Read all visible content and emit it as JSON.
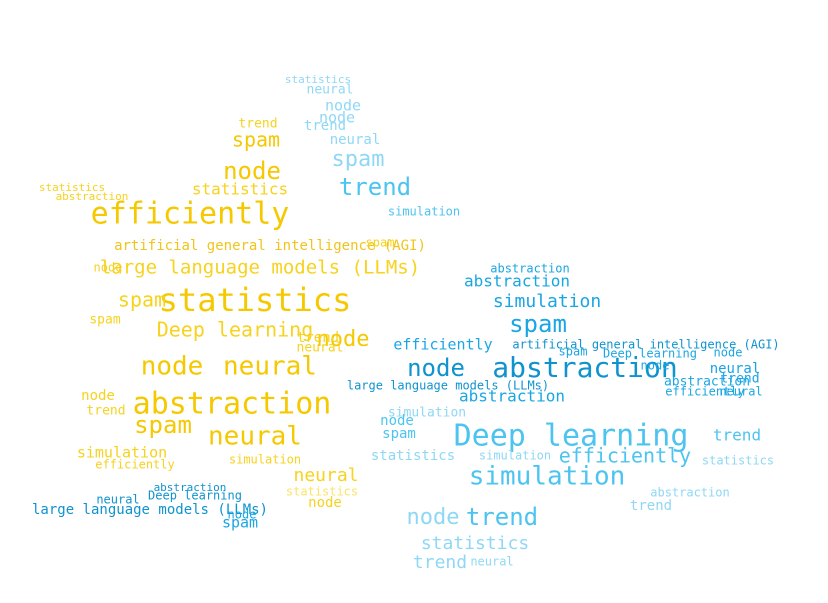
{
  "colors": {
    "star": [
      "#f7d21e",
      "#f5c800",
      "#fbe36a",
      "#f0c419"
    ],
    "fish": [
      "#1aa6e4",
      "#4cc4f0",
      "#8fd8f5",
      "#0f93cf"
    ]
  },
  "words": {
    "w01": "efficiently",
    "w02": "statistics",
    "w03": "spam",
    "w04": "node",
    "w05": "neural",
    "w06": "abstraction",
    "w07": "spam",
    "w08": "neural",
    "w09": "Deep learning",
    "w10": "large language models (LLMs)",
    "w11": "artificial general intelligence (AGI)",
    "w12": "node",
    "w13": "spam",
    "w14": "trend",
    "w15": "statistics",
    "w16": "node",
    "w17": "simulation",
    "w18": "neural",
    "w19": "node",
    "w20": "statistics",
    "w21": "large language models (LLMs)",
    "w22": "Deep learning",
    "w23": "spam",
    "w24": "trend",
    "w25": "node",
    "w26": "neural",
    "w27": "simulation",
    "w28": "spam",
    "w29": "trend",
    "w30": "statistics",
    "w31": "abstraction",
    "w32": "efficiently",
    "w33": "abstraction",
    "w34": "node",
    "w35": "neural",
    "w36": "spam",
    "w37": "node",
    "f01": "Deep learning",
    "f02": "abstraction",
    "f03": "simulation",
    "f04": "node",
    "f05": "trend",
    "f06": "spam",
    "f07": "node",
    "f08": "simulation",
    "f09": "abstraction",
    "f10": "statistics",
    "f11": "trend",
    "f12": "spam",
    "f13": "trend",
    "f14": "node",
    "f15": "efficiently",
    "f16": "abstraction",
    "f17": "trend",
    "f18": "neural",
    "f19": "spam",
    "f20": "node",
    "f21": "statistics",
    "f22": "efficiently",
    "f23": "simulation",
    "f24": "simulation",
    "f25": "abstraction",
    "f26": "artificial general intelligence (AGI)",
    "f27": "large language models (LLMs)",
    "f28": "neural",
    "f29": "trend",
    "f30": "statistics",
    "f31": "node",
    "f32": "neural",
    "f33": "abstraction",
    "f34": "efficiently",
    "f35": "trend",
    "f36": "node",
    "f37": "spam",
    "f38": "abstraction",
    "f39": "simulation",
    "f40": "trend",
    "f41": "neural",
    "f42": "statistics",
    "f43": "Deep learning",
    "f44": "node",
    "f45": "neural"
  }
}
